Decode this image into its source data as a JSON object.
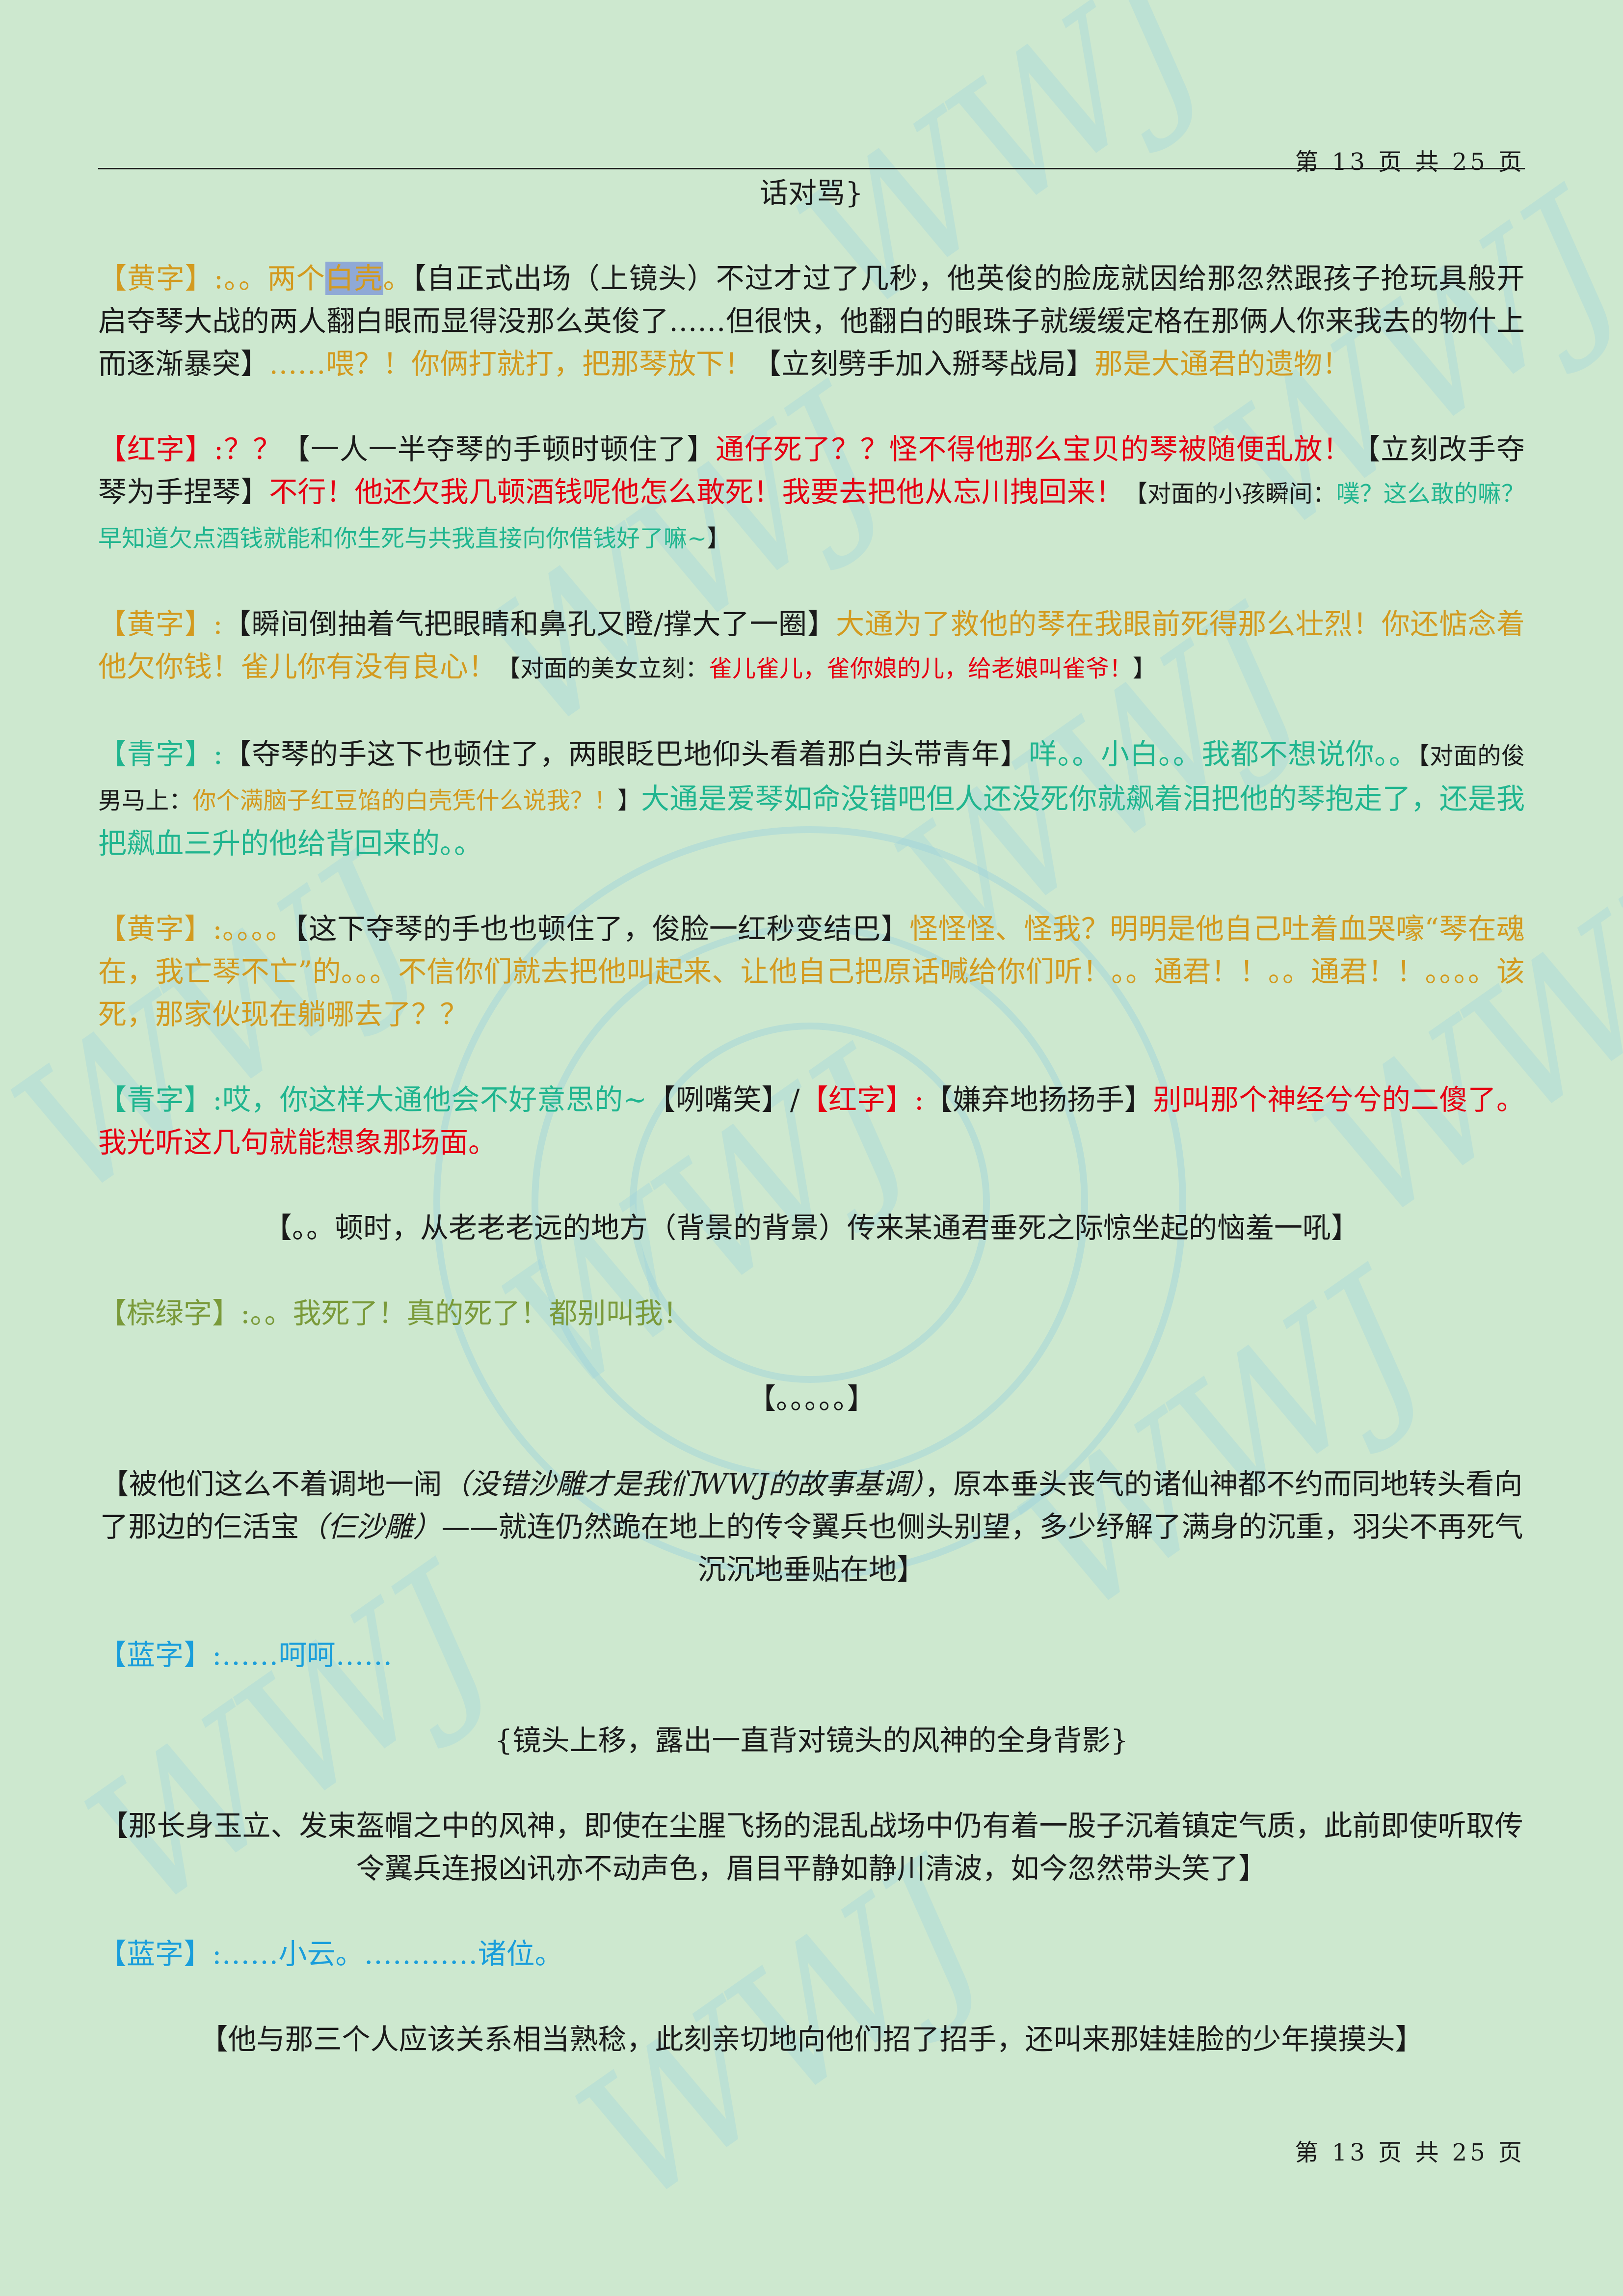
{
  "page_number": "第 13 页 共 25 页",
  "paragraphs": {
    "p0": "话对骂}",
    "p1": {
      "a": "【黄字】:。。两个",
      "b": "白壳",
      "c": "。",
      "d": "【自正式出场（上镜头）不过才过了几秒，他英俊的脸庞就因给那忽然跟孩子抢玩具般开启夺琴大战的两人翻白眼而显得没那么英俊了……但很快，他翻白的眼珠子就缓缓定格在那俩人你来我去的物什上而逐渐暴突】",
      "e": "……喂？！你俩打就打，把那琴放下！",
      "f": "【立刻劈手加入掰琴战局】",
      "g": "那是大通君的遗物！"
    },
    "p2": {
      "a": "【红字】:",
      "b": "？？",
      "c": "【一人一半夺琴的手顿时顿住了】",
      "d": "通仔死了？？怪不得他那么宝贝的琴被随便乱放！",
      "e": "【立刻改手夺琴为手捏琴】",
      "f": "不行！他还欠我几顿酒钱呢他怎么敢死！我要去把他从忘川拽回来！",
      "g": "【对面的小孩瞬间：",
      "h": "噗？这么敢的嘛？早知道欠点酒钱就能和你生死与共我直接向你借钱好了嘛~",
      "i": "】"
    },
    "p3": {
      "a": "【黄字】:",
      "b": "【瞬间倒抽着气把眼睛和鼻孔又瞪/撑大了一圈】",
      "c": "大通为了救他的琴在我眼前死得那么壮烈！你还惦念着他欠你钱！雀儿你有没有良心！",
      "d": "【对面的美女立刻：",
      "e": "雀儿雀儿，雀你娘的儿，给老娘叫雀爷！",
      "f": "】"
    },
    "p4": {
      "a": "【青字】:",
      "b": "【夺琴的手这下也顿住了，两眼眨巴地仰头看着那白头带青年】",
      "c": "咩。。小白。。我都不想说你。。",
      "d": "【对面的俊男马上：",
      "e": "你个满脑子红豆馅的白壳凭什么说我？！",
      "f": "】",
      "g": "大通是爱琴如命没错吧但人还没死你就飙着泪把他的琴抱走了，还是我把飙血三升的他给背回来的。。"
    },
    "p5": {
      "a": "【黄字】:。。。。",
      "b": "【这下夺琴的手也也顿住了，俊脸一红秒变结巴】",
      "c": "怪怪怪、怪我？明明是他自己吐着血哭嚎“琴在魂在，我亡琴不亡”的。。。不信你们就去把他叫起来、让他自己把原话喊给你们听！。。通君！！。。通君！！。。。。该死，那家伙现在躺哪去了？？"
    },
    "p6": {
      "a": "【青字】:",
      "b": "哎，你这样大通他会不好意思的~",
      "c": "【咧嘴笑】",
      "d": "/",
      "e": "【红字】:",
      "f": "【嫌弃地扬扬手】",
      "g": "别叫那个神经兮兮的二傻了。我光听这几句就能想象那场面。"
    },
    "p7": "【。。顿时，从老老老远的地方（背景的背景）传来某通君垂死之际惊坐起的恼羞一吼】",
    "p8": {
      "a": "【棕绿字】:",
      "b": "。。我死了！真的死了！都别叫我！"
    },
    "p9": "【。。。。。】",
    "p10": {
      "a": "【被他们这么不着调地一闹",
      "b": "（没错沙雕才是我们WWJ的故事基调）",
      "c": "，原本垂头丧气的诸仙神都不约而同地转头看向了那边的仨活宝",
      "d": "（仨沙雕）",
      "e": "——就连仍然跪在地上的传令翼兵也侧头别望，多少纾解了满身的沉重，羽尖不再死气沉沉地垂贴在地】"
    },
    "p11": {
      "a": "【蓝字】:",
      "b": "……呵呵……"
    },
    "p12": "{镜头上移，露出一直背对镜头的风神的全身背影}",
    "p13": "【那长身玉立、发束盔帽之中的风神，即使在尘腥飞扬的混乱战场中仍有着一股子沉着镇定气质，此前即使听取传令翼兵连报凶讯亦不动声色，眉目平静如静川清波，如今忽然带头笑了】",
    "p14": {
      "a": "【蓝字】:",
      "b": "……小云。…………诸位。"
    },
    "p15": "【他与那三个人应该关系相当熟稔，此刻亲切地向他们招了招手，还叫来那娃娃脸的少年摸摸头】"
  },
  "watermark_text": "WWJ",
  "colors": {
    "background": "#cde8cf",
    "yellow": "#d39a1f",
    "red": "#e60012",
    "teal": "#20b58f",
    "blue": "#1a9edb",
    "olive": "#7a9a3a",
    "highlight": "#8fa9d6"
  }
}
